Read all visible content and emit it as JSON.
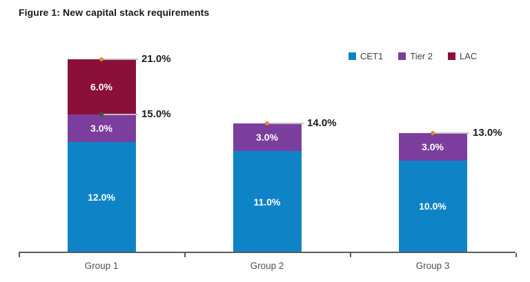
{
  "title": "Figure 1: New capital stack requirements",
  "colors": {
    "background": "#ffffff",
    "title_color": "#17171f",
    "legend_text_color": "#3f3f3f",
    "axis_line_color": "#595959",
    "x_label_color": "#4f4f4f",
    "leader_line_color": "#bfbfbf",
    "annotation_label_color": "#1a1a1a",
    "segment_label_color": "#ffffff"
  },
  "legend": {
    "position": "top-right",
    "entries": [
      "CET1",
      "Tier 2",
      "LAC"
    ]
  },
  "chart_data": {
    "type": "bar",
    "stacked": true,
    "title": "Figure 1: New capital stack requirements",
    "xlabel": "",
    "ylabel": "",
    "grid": false,
    "y_axis_visible": false,
    "ylim": [
      0,
      22.5
    ],
    "unit": "percent",
    "categories": [
      "Group 1",
      "Group 2",
      "Group 3"
    ],
    "series": [
      {
        "name": "CET1",
        "color": "#0e84c7",
        "values": [
          12.0,
          11.0,
          10.0
        ],
        "labels": [
          "12.0%",
          "11.0%",
          "10.0%"
        ]
      },
      {
        "name": "Tier 2",
        "color": "#7c3e9d",
        "values": [
          3.0,
          3.0,
          3.0
        ],
        "labels": [
          "3.0%",
          "3.0%",
          "3.0%"
        ]
      },
      {
        "name": "LAC",
        "color": "#8a1039",
        "values": [
          6.0,
          0,
          0
        ],
        "labels": [
          "6.0%",
          "",
          ""
        ]
      }
    ],
    "totals": [
      21.0,
      14.0,
      13.0
    ],
    "annotations": [
      {
        "category_index": 0,
        "value": 21.0,
        "label": "21.0%",
        "marker_color": "#e5862b"
      },
      {
        "category_index": 0,
        "value": 15.0,
        "label": "15.0%",
        "marker_color": "#2f5d3a"
      },
      {
        "category_index": 1,
        "value": 14.0,
        "label": "14.0%",
        "marker_color": "#e5862b"
      },
      {
        "category_index": 2,
        "value": 13.0,
        "label": "13.0%",
        "marker_color": "#e5862b"
      }
    ]
  }
}
